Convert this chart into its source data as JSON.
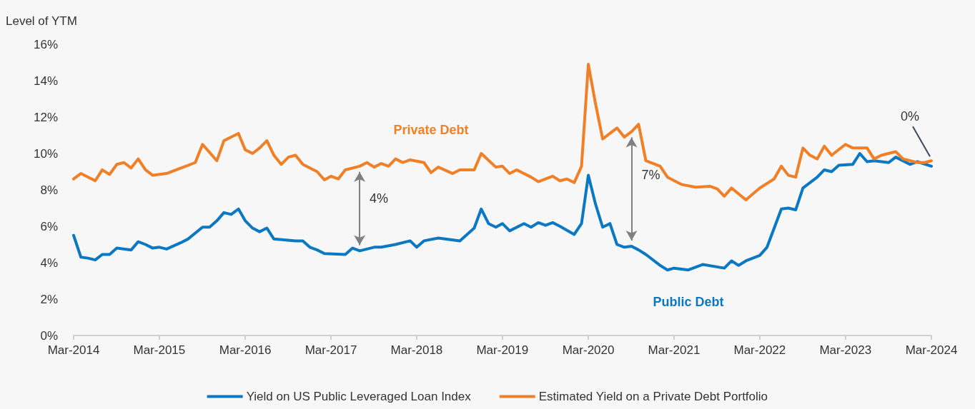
{
  "chart_data": {
    "type": "line",
    "ylabel": "Level of YTM",
    "xlim": [
      "2014-03",
      "2024-03"
    ],
    "xticks": [
      {
        "value": "2014-03",
        "label": "Mar-2014"
      },
      {
        "value": "2015-03",
        "label": "Mar-2015"
      },
      {
        "value": "2016-03",
        "label": "Mar-2016"
      },
      {
        "value": "2017-03",
        "label": "Mar-2017"
      },
      {
        "value": "2018-03",
        "label": "Mar-2018"
      },
      {
        "value": "2019-03",
        "label": "Mar-2019"
      },
      {
        "value": "2020-03",
        "label": "Mar-2020"
      },
      {
        "value": "2021-03",
        "label": "Mar-2021"
      },
      {
        "value": "2022-03",
        "label": "Mar-2022"
      },
      {
        "value": "2023-03",
        "label": "Mar-2023"
      },
      {
        "value": "2024-03",
        "label": "Mar-2024"
      }
    ],
    "ylim": [
      0,
      16
    ],
    "yticks": [
      {
        "value": 0,
        "label": "0%"
      },
      {
        "value": 2,
        "label": "2%"
      },
      {
        "value": 4,
        "label": "4%"
      },
      {
        "value": 6,
        "label": "6%"
      },
      {
        "value": 8,
        "label": "8%"
      },
      {
        "value": 10,
        "label": "10%"
      },
      {
        "value": 12,
        "label": "12%"
      },
      {
        "value": 14,
        "label": "14%"
      },
      {
        "value": 16,
        "label": "16%"
      }
    ],
    "grid": false,
    "legend": "bottom",
    "marker": "none",
    "line_style": "solid",
    "series": [
      {
        "name": "Yield on US Public Leveraged Loan Index",
        "color": "#0a78c2",
        "x": [
          "2014-03",
          "2014-04",
          "2014-05",
          "2014-06",
          "2014-07",
          "2014-08",
          "2014-09",
          "2014-11",
          "2014-12",
          "2015-01",
          "2015-02",
          "2015-03",
          "2015-04",
          "2015-06",
          "2015-07",
          "2015-09",
          "2015-10",
          "2015-11",
          "2015-12",
          "2016-01",
          "2016-02",
          "2016-03",
          "2016-04",
          "2016-05",
          "2016-06",
          "2016-07",
          "2016-10",
          "2016-11",
          "2016-12",
          "2017-01",
          "2017-02",
          "2017-05",
          "2017-06",
          "2017-07",
          "2017-09",
          "2017-10",
          "2017-12",
          "2018-02",
          "2018-03",
          "2018-04",
          "2018-06",
          "2018-09",
          "2018-11",
          "2018-12",
          "2019-01",
          "2019-02",
          "2019-03",
          "2019-04",
          "2019-06",
          "2019-07",
          "2019-08",
          "2019-09",
          "2019-10",
          "2019-11",
          "2020-01",
          "2020-02",
          "2020-03",
          "2020-04",
          "2020-05",
          "2020-06",
          "2020-07",
          "2020-08",
          "2020-09",
          "2020-10",
          "2020-11",
          "2021-01",
          "2021-02",
          "2021-03",
          "2021-05",
          "2021-07",
          "2021-10",
          "2021-11",
          "2021-12",
          "2022-01",
          "2022-03",
          "2022-04",
          "2022-06",
          "2022-07",
          "2022-08",
          "2022-09",
          "2022-11",
          "2022-12",
          "2023-01",
          "2023-02",
          "2023-04",
          "2023-05",
          "2023-06",
          "2023-07",
          "2023-09",
          "2023-10",
          "2023-12",
          "2024-01",
          "2024-03"
        ],
        "values": [
          5.5,
          4.3,
          4.25,
          4.15,
          4.45,
          4.45,
          4.8,
          4.7,
          5.15,
          5.0,
          4.8,
          4.85,
          4.75,
          5.1,
          5.3,
          5.95,
          5.95,
          6.3,
          6.75,
          6.65,
          6.95,
          6.3,
          5.9,
          5.7,
          5.9,
          5.3,
          5.2,
          5.2,
          4.85,
          4.7,
          4.5,
          4.45,
          4.8,
          4.65,
          4.85,
          4.85,
          5.0,
          5.2,
          4.85,
          5.2,
          5.35,
          5.2,
          5.9,
          6.95,
          6.15,
          5.95,
          6.15,
          5.75,
          6.15,
          5.95,
          6.2,
          6.05,
          6.2,
          6.0,
          5.55,
          6.15,
          8.8,
          7.2,
          5.95,
          6.15,
          5.0,
          4.85,
          4.9,
          4.7,
          4.45,
          3.85,
          3.6,
          3.7,
          3.6,
          3.9,
          3.7,
          4.1,
          3.85,
          4.1,
          4.4,
          4.85,
          6.95,
          7.0,
          6.9,
          8.1,
          8.7,
          9.1,
          9.0,
          9.35,
          9.4,
          10.0,
          9.55,
          9.6,
          9.5,
          9.8,
          9.4,
          9.55,
          9.3
        ]
      },
      {
        "name": "Estimated Yield on a Private Debt Portfolio",
        "color": "#f07f26",
        "x": [
          "2014-03",
          "2014-04",
          "2014-06",
          "2014-07",
          "2014-08",
          "2014-09",
          "2014-10",
          "2014-11",
          "2014-12",
          "2015-01",
          "2015-02",
          "2015-04",
          "2015-06",
          "2015-08",
          "2015-09",
          "2015-11",
          "2015-12",
          "2016-01",
          "2016-02",
          "2016-03",
          "2016-04",
          "2016-05",
          "2016-06",
          "2016-07",
          "2016-08",
          "2016-09",
          "2016-10",
          "2016-11",
          "2017-01",
          "2017-02",
          "2017-03",
          "2017-04",
          "2017-05",
          "2017-07",
          "2017-08",
          "2017-09",
          "2017-10",
          "2017-11",
          "2017-12",
          "2018-01",
          "2018-02",
          "2018-04",
          "2018-05",
          "2018-06",
          "2018-08",
          "2018-09",
          "2018-11",
          "2018-12",
          "2019-02",
          "2019-03",
          "2019-04",
          "2019-05",
          "2019-07",
          "2019-08",
          "2019-10",
          "2019-11",
          "2019-12",
          "2020-01",
          "2020-02",
          "2020-03",
          "2020-04",
          "2020-05",
          "2020-07",
          "2020-08",
          "2020-09",
          "2020-10",
          "2020-11",
          "2021-01",
          "2021-02",
          "2021-04",
          "2021-06",
          "2021-08",
          "2021-09",
          "2021-10",
          "2021-11",
          "2022-01",
          "2022-03",
          "2022-05",
          "2022-06",
          "2022-07",
          "2022-08",
          "2022-09",
          "2022-10",
          "2022-11",
          "2022-12",
          "2023-01",
          "2023-03",
          "2023-04",
          "2023-06",
          "2023-07",
          "2023-08",
          "2023-10",
          "2023-11",
          "2024-01",
          "2024-02",
          "2024-03"
        ],
        "values": [
          8.6,
          8.9,
          8.5,
          9.1,
          8.85,
          9.4,
          9.5,
          9.2,
          9.7,
          9.1,
          8.8,
          8.9,
          9.2,
          9.5,
          10.5,
          9.6,
          10.7,
          10.9,
          11.1,
          10.2,
          10.0,
          10.3,
          10.7,
          9.9,
          9.4,
          9.8,
          9.9,
          9.4,
          9.0,
          8.55,
          8.75,
          8.6,
          9.1,
          9.3,
          9.5,
          9.25,
          9.45,
          9.3,
          9.7,
          9.5,
          9.65,
          9.5,
          8.95,
          9.25,
          8.9,
          9.1,
          9.1,
          10.0,
          9.25,
          9.3,
          8.9,
          9.1,
          8.7,
          8.45,
          8.75,
          8.5,
          8.6,
          8.4,
          9.3,
          14.9,
          12.7,
          10.8,
          11.4,
          10.9,
          11.2,
          11.6,
          9.6,
          9.3,
          8.7,
          8.3,
          8.15,
          8.2,
          8.05,
          7.65,
          8.1,
          7.45,
          8.1,
          8.6,
          9.3,
          8.8,
          8.7,
          10.3,
          9.9,
          9.7,
          10.4,
          9.9,
          10.5,
          10.3,
          10.3,
          9.7,
          9.9,
          10.1,
          9.7,
          9.5,
          9.5,
          9.6
        ]
      }
    ],
    "annotations": [
      {
        "text": "4%",
        "x": "2017-07",
        "y": 9.3
      },
      {
        "text": "7%",
        "x": "2020-09",
        "y": 11.2
      },
      {
        "text": "0%",
        "x": "2024-03",
        "y": 9.6
      },
      {
        "text": "Private Debt",
        "x": "2018-05",
        "y": 8.95
      },
      {
        "text": "Public Debt",
        "x": "2021-05",
        "y": 3.6
      }
    ]
  }
}
